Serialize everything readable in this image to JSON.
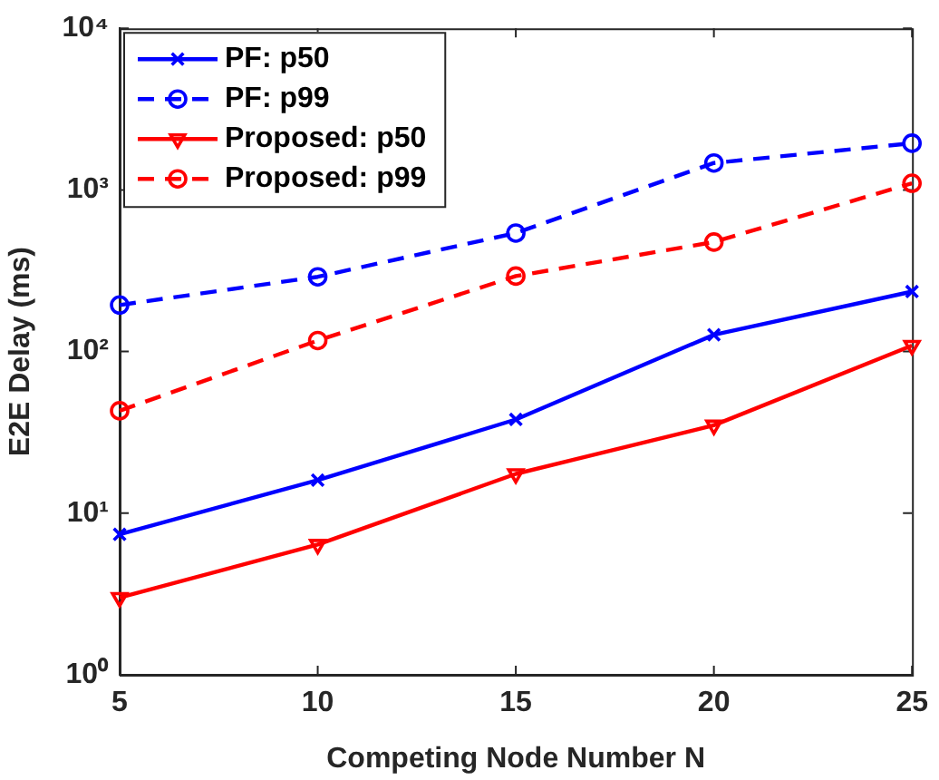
{
  "chart_data": {
    "type": "line",
    "xlabel": "Competing Node Number N",
    "ylabel": "E2E Delay (ms)",
    "x": [
      5,
      10,
      15,
      20,
      25
    ],
    "xlim": [
      5,
      25
    ],
    "xticks": [
      5,
      10,
      15,
      20,
      25
    ],
    "log": "y",
    "ylim": [
      1,
      10000
    ],
    "yticks": [
      {
        "value": 1,
        "label": "10⁰"
      },
      {
        "value": 10,
        "label": "10¹"
      },
      {
        "value": 100,
        "label": "10²"
      },
      {
        "value": 1000,
        "label": "10³"
      },
      {
        "value": 10000,
        "label": "10⁴"
      }
    ],
    "grid": false,
    "legend": "top left",
    "series": [
      {
        "name": "PF: p50",
        "color": "#0000ff",
        "marker": "cross",
        "line_style": "solid",
        "values": [
          7.4,
          16,
          38,
          127,
          235
        ]
      },
      {
        "name": "PF: p99",
        "color": "#0000ff",
        "marker": "circle",
        "line_style": "dashed",
        "values": [
          194,
          290,
          541,
          1468,
          1945
        ]
      },
      {
        "name": "Proposed: p50",
        "color": "#ff0000",
        "marker": "triangle",
        "line_style": "solid",
        "values": [
          3.0,
          6.4,
          17.5,
          35,
          109
        ]
      },
      {
        "name": "Proposed: p99",
        "color": "#ff0000",
        "marker": "circle",
        "line_style": "dashed",
        "values": [
          43,
          117,
          293,
          476,
          1100
        ]
      }
    ]
  }
}
